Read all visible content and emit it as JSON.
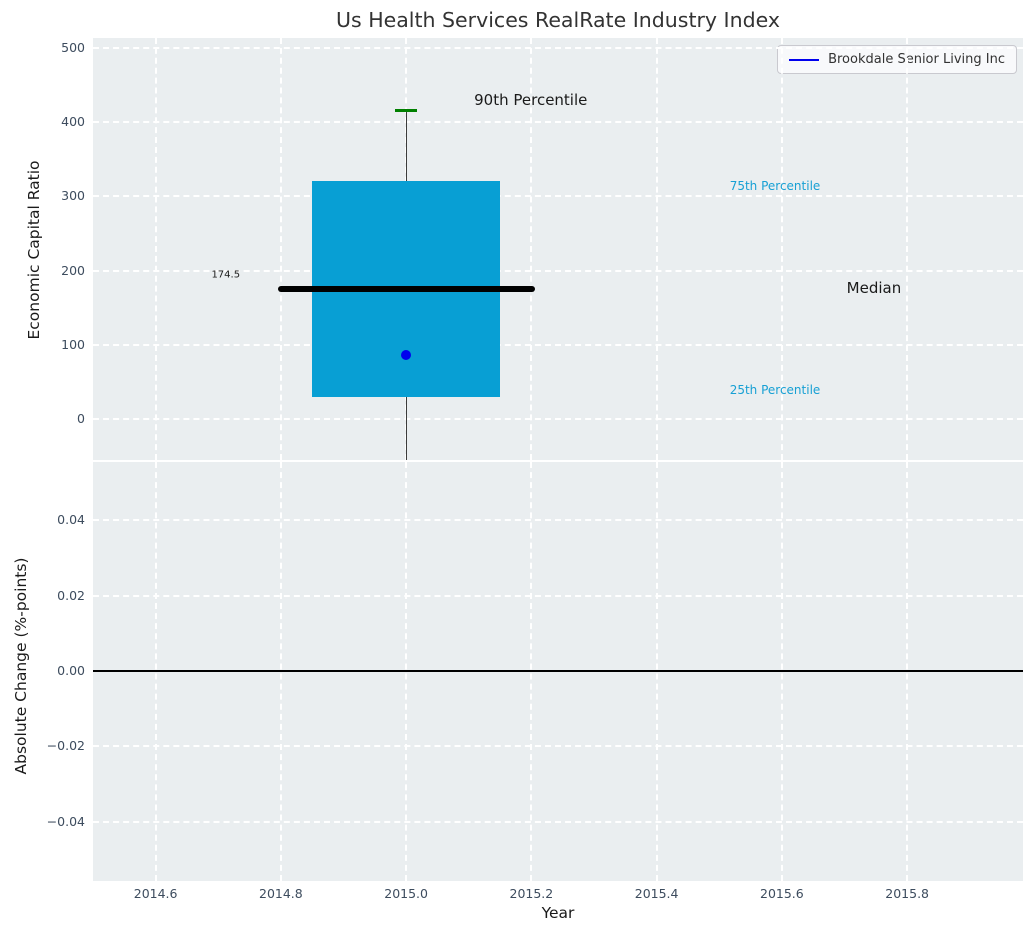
{
  "legend": {
    "label": "Brookdale Senior Living Inc"
  },
  "colors": {
    "axes_background": "#eaeef0",
    "grid": "#ffffff",
    "box_fill": "#089fd4",
    "median_line": "#000000",
    "whisker": "#3c3c3c",
    "p90_cap": "#008000",
    "company_dot": "#0000ee",
    "percentile_label_text": "#17a0d4",
    "annotation_text": "#1a1a1a",
    "tick_label": "#3d4c5e",
    "axis_label": "#1a1a1a",
    "title": "#333333",
    "zero_line": "#000000"
  },
  "chart_data": {
    "type": "box",
    "title": "Us Health Services RealRate Industry Index",
    "xlabel": "Year",
    "top_ylabel": "Economic Capital Ratio",
    "bottom_ylabel": "Absolute Change (%-points)",
    "grid": "on",
    "legend_position": "top-right",
    "xlim": [
      2014.5,
      2015.985
    ],
    "top_ylim": [
      -55,
      513
    ],
    "bottom_ylim": [
      -0.0557,
      0.0554
    ],
    "x_ticks": [
      2014.6,
      2014.8,
      2015.0,
      2015.2,
      2015.4,
      2015.6,
      2015.8
    ],
    "x_tick_labels": [
      "2014.6",
      "2014.8",
      "2015.0",
      "2015.2",
      "2015.4",
      "2015.6",
      "2015.8"
    ],
    "top_y_ticks": [
      0,
      100,
      200,
      300,
      400,
      500
    ],
    "top_y_tick_labels": [
      "0",
      "100",
      "200",
      "300",
      "400",
      "500"
    ],
    "bottom_y_ticks": [
      0.04,
      0.02,
      0,
      -0.02,
      -0.04
    ],
    "bottom_y_tick_labels": [
      "0.04",
      "0.02",
      "0.00",
      "−0.02",
      "−0.04"
    ],
    "box": {
      "x": 2015.0,
      "p90": 415,
      "p75": 320,
      "median": 174.5,
      "p25": 30,
      "company_value": 86,
      "whisker_extends_below_axis": true,
      "box_half_width": 0.15,
      "median_half_width": 0.205,
      "cap_half_width": 0.017
    },
    "annotations": [
      {
        "text": "90th Percentile",
        "x": 2015.199,
        "y": 429,
        "style": "black-large"
      },
      {
        "text": "75th Percentile",
        "x": 2015.589,
        "y": 314,
        "style": "cyan-small"
      },
      {
        "text": "Median",
        "x": 2015.747,
        "y": 176,
        "style": "black-large"
      },
      {
        "text": "25th Percentile",
        "x": 2015.589,
        "y": 39,
        "style": "cyan-small"
      },
      {
        "text": "174.5",
        "x": 2014.712,
        "y": 194,
        "style": "black-tiny"
      }
    ],
    "bottom_zero_line_y": 0.0
  }
}
